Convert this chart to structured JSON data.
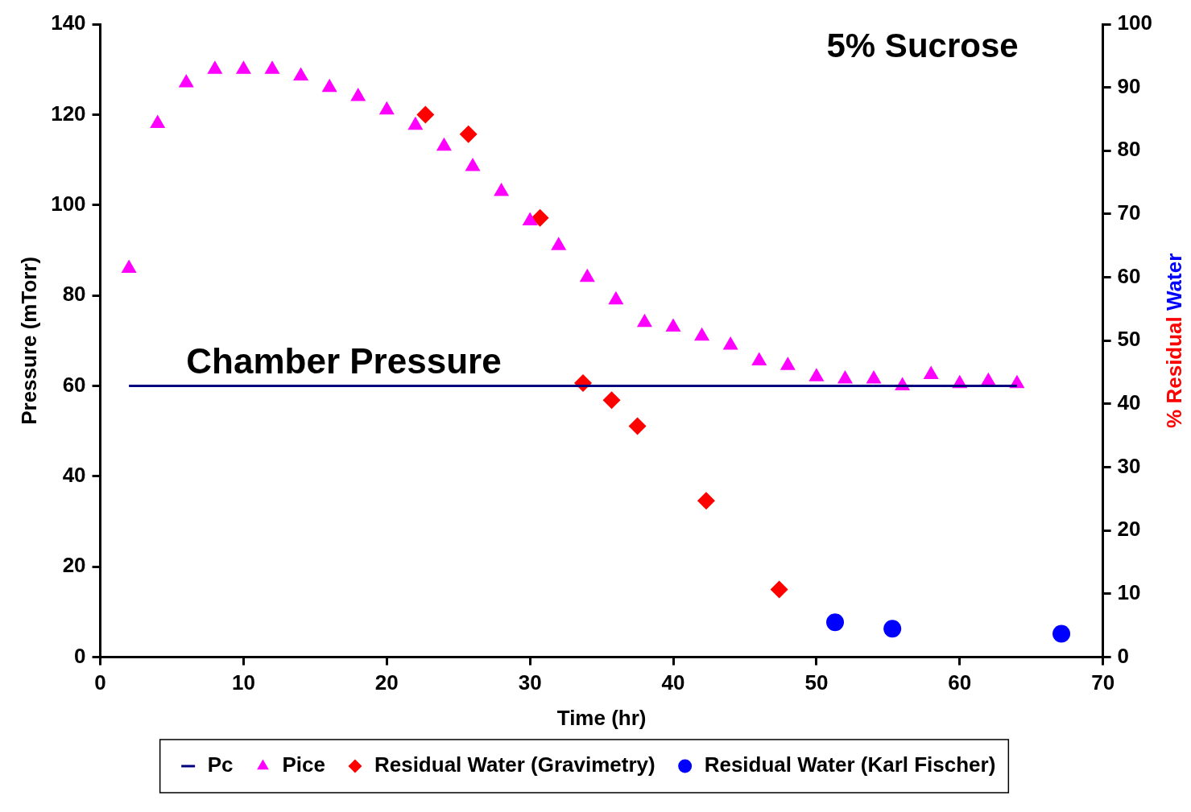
{
  "chart_data": {
    "type": "scatter",
    "title": "5% Sucrose",
    "xlabel": "Time (hr)",
    "ylabel": "Pressure (mTorr)",
    "y2label": "% Residual Water",
    "xlim": [
      0,
      70
    ],
    "xticks": [
      0,
      10,
      20,
      30,
      40,
      50,
      60,
      70
    ],
    "ylim": [
      0,
      140
    ],
    "yticks": [
      0,
      20,
      40,
      60,
      80,
      100,
      120,
      140
    ],
    "y2lim": [
      0,
      100
    ],
    "y2ticks": [
      0,
      10,
      20,
      30,
      40,
      50,
      60,
      70,
      80,
      90,
      100
    ],
    "grid": false,
    "legend": "bottom",
    "annotations": [
      {
        "text": "Chamber Pressure",
        "x": 17,
        "y": 60
      }
    ],
    "series": [
      {
        "name": "Pc",
        "type": "line",
        "color": "#000080",
        "marker": "none",
        "line_style": "solid",
        "x": [
          2,
          64
        ],
        "values": [
          60,
          60
        ]
      },
      {
        "name": "Pice",
        "type": "scatter",
        "color": "#ff00ff",
        "marker": "triangle",
        "x": [
          2,
          4,
          6,
          8,
          10,
          12,
          14,
          16,
          18,
          20,
          22,
          24,
          26,
          28,
          30,
          32,
          34,
          36,
          38,
          40,
          42,
          44,
          46,
          48,
          50,
          52,
          54,
          56,
          58,
          60,
          62,
          64
        ],
        "values": [
          86,
          118,
          127,
          130,
          130,
          130,
          128.5,
          126,
          124,
          121,
          117.6,
          113,
          108.5,
          103,
          96.5,
          91,
          84,
          79,
          74,
          73,
          71,
          69,
          65.5,
          64.5,
          62,
          61.5,
          61.5,
          60,
          62.5,
          60.5,
          61,
          60.5
        ]
      },
      {
        "name": "Residual Water (Gravimetry)",
        "type": "scatter",
        "axis": "y2",
        "color": "#ff0000",
        "marker": "diamond",
        "x": [
          22.7,
          25.7,
          30.7,
          33.7,
          35.7,
          37.5,
          42.3,
          47.4
        ],
        "values": [
          85.7,
          82.6,
          69.4,
          43.3,
          40.6,
          36.5,
          24.7,
          10.7
        ]
      },
      {
        "name": "Residual Water (Karl Fischer)",
        "type": "scatter",
        "axis": "y2",
        "color": "#0000ff",
        "marker": "circle",
        "x": [
          51.3,
          55.3,
          67.1
        ],
        "values": [
          5.5,
          4.5,
          3.7
        ]
      }
    ]
  }
}
